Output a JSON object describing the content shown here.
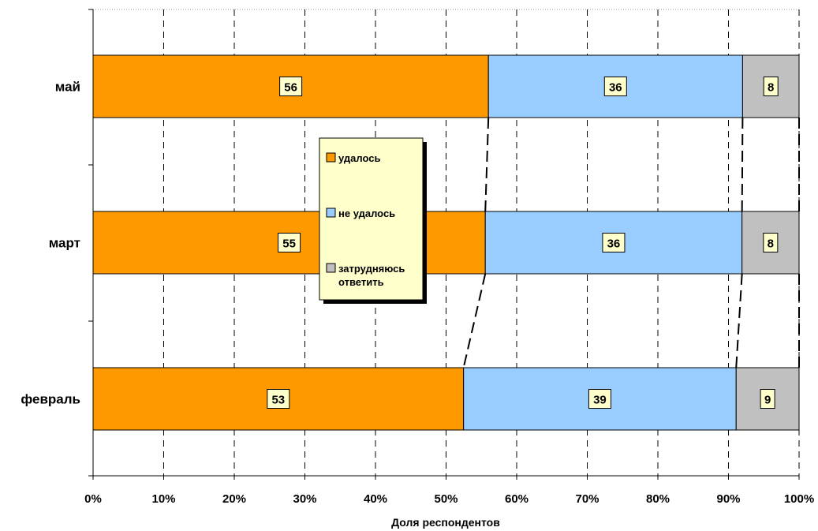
{
  "chart_data": {
    "type": "bar",
    "orientation": "horizontal",
    "stacked": true,
    "normalized": true,
    "categories": [
      "май",
      "март",
      "февраль"
    ],
    "series": [
      {
        "name": "удалось",
        "color": "#ff9900",
        "values": [
          56,
          55,
          53
        ]
      },
      {
        "name": "не удалось",
        "color": "#99ccff",
        "values": [
          36,
          36,
          39
        ]
      },
      {
        "name": "затрудняюсь ответить",
        "color": "#c0c0c0",
        "values": [
          8,
          8,
          9
        ]
      }
    ],
    "xlabel": "Доля респондентов",
    "ylabel": "",
    "xlim": [
      0,
      100
    ],
    "x_tick_labels": [
      "0%",
      "10%",
      "20%",
      "30%",
      "40%",
      "50%",
      "60%",
      "70%",
      "80%",
      "90%",
      "100%"
    ],
    "grid": "vertical dashed",
    "series_connectors": "dashed",
    "legend_placement": "center",
    "legend_text_lines": [
      [
        "удалось"
      ],
      [
        "не удалось"
      ],
      [
        "затрудняюсь",
        "ответить"
      ]
    ],
    "label_box_color": "#ffffcc"
  }
}
